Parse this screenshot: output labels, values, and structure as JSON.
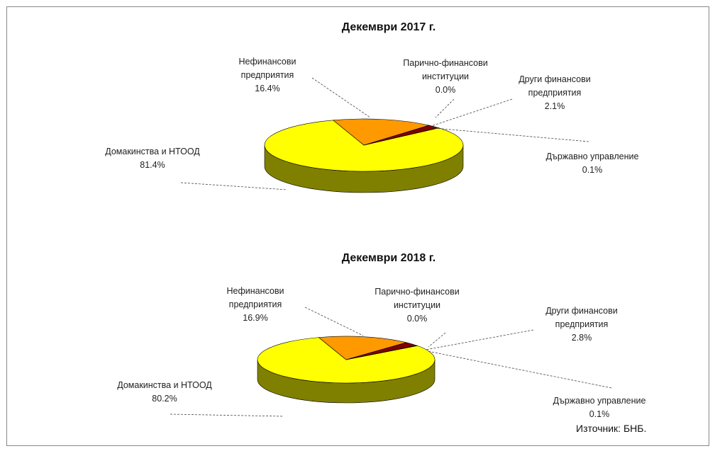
{
  "chart_data": [
    {
      "type": "pie",
      "title": "Декември 2017 г.",
      "categories": [
        "Домакинства и НТООД",
        "Нефинансови предприятия",
        "Парично-финансови институции",
        "Други финансови предприятия",
        "Държавно управление"
      ],
      "values": [
        81.4,
        16.4,
        0.0,
        2.1,
        0.1
      ],
      "value_labels": [
        "81.4%",
        "16.4%",
        "0.0%",
        "2.1%",
        "0.1%"
      ],
      "colors": [
        "#ffff00",
        "#ff9900",
        "#ff99cc",
        "#800000",
        "#ccffcc"
      ]
    },
    {
      "type": "pie",
      "title": "Декември 2018 г.",
      "categories": [
        "Домакинства и НТООД",
        "Нефинансови предприятия",
        "Парично-финансови институции",
        "Други финансови предприятия",
        "Държавно управление"
      ],
      "values": [
        80.2,
        16.9,
        0.0,
        2.8,
        0.1
      ],
      "value_labels": [
        "80.2%",
        "16.9%",
        "0.0%",
        "2.8%",
        "0.1%"
      ],
      "colors": [
        "#ffff00",
        "#ff9900",
        "#ff99cc",
        "#800000",
        "#ccffcc"
      ]
    }
  ],
  "source": "Източник: БНБ."
}
